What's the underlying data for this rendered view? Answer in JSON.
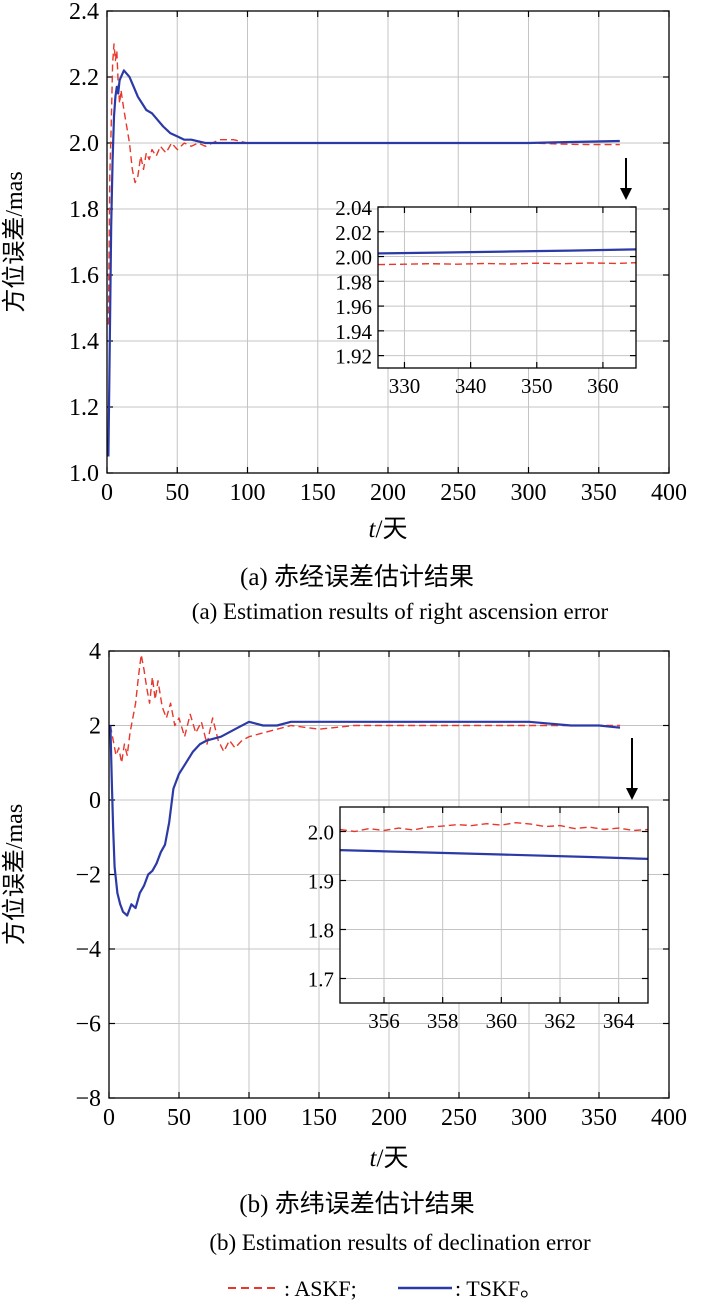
{
  "colors": {
    "askf": "#e8372b",
    "tskf": "#2b3aa6",
    "grid": "#c4c4c4",
    "axis": "#000000"
  },
  "legend": {
    "askf_label": ": ASKF;",
    "tskf_label": ": TSKF。"
  },
  "chart_data": [
    {
      "type": "line",
      "title": "",
      "caption_cn": "(a) 赤经误差估计结果",
      "caption_en": "(a) Estimation results of right ascension error",
      "xlabel_italic": "t",
      "xlabel_rest": "/天",
      "ylabel": "方位误差/mas",
      "xlim": [
        0,
        400
      ],
      "ylim": [
        1.0,
        2.4
      ],
      "xticks": [
        0,
        50,
        100,
        150,
        200,
        250,
        300,
        350,
        400
      ],
      "yticks": [
        1.0,
        1.2,
        1.4,
        1.6,
        1.8,
        2.0,
        2.2,
        2.4
      ],
      "ytick_labels": [
        "1.0",
        "1.2",
        "1.4",
        "1.6",
        "1.8",
        "2.0",
        "2.2",
        "2.4"
      ],
      "grid": true,
      "series": [
        {
          "name": "ASKF",
          "style": "dashed",
          "x": [
            1,
            2,
            3,
            4,
            5,
            6,
            7,
            8,
            9,
            10,
            12,
            14,
            16,
            18,
            20,
            22,
            24,
            26,
            28,
            30,
            32,
            35,
            38,
            42,
            46,
            50,
            55,
            60,
            65,
            70,
            75,
            80,
            90,
            100,
            120,
            150,
            200,
            250,
            300,
            330,
            345,
            365
          ],
          "y": [
            1.45,
            1.9,
            2.05,
            2.24,
            2.3,
            2.25,
            2.28,
            2.18,
            2.12,
            2.16,
            2.1,
            2.05,
            2.0,
            1.92,
            1.88,
            1.9,
            1.96,
            1.92,
            1.97,
            1.95,
            1.98,
            1.96,
            1.99,
            1.97,
            2.0,
            1.98,
            2.0,
            1.99,
            2.0,
            1.99,
            2.0,
            2.01,
            2.01,
            2.0,
            2.0,
            2.0,
            2.0,
            2.0,
            2.0,
            1.996,
            1.995,
            1.995
          ]
        },
        {
          "name": "TSKF",
          "style": "solid",
          "x": [
            1,
            2,
            3,
            4,
            5,
            6,
            7,
            8,
            9,
            10,
            12,
            14,
            16,
            18,
            20,
            22,
            25,
            28,
            32,
            36,
            40,
            45,
            50,
            55,
            60,
            70,
            80,
            90,
            100,
            120,
            150,
            200,
            250,
            300,
            330,
            365
          ],
          "y": [
            1.05,
            1.4,
            1.75,
            1.95,
            2.08,
            2.14,
            2.17,
            2.15,
            2.19,
            2.2,
            2.22,
            2.21,
            2.2,
            2.18,
            2.16,
            2.14,
            2.12,
            2.1,
            2.09,
            2.07,
            2.05,
            2.03,
            2.02,
            2.01,
            2.01,
            2.0,
            2.0,
            2.0,
            2.0,
            2.0,
            2.0,
            2.0,
            2.0,
            2.0,
            2.003,
            2.006
          ]
        }
      ],
      "inset": {
        "xlim": [
          326,
          365
        ],
        "ylim": [
          1.91,
          2.04
        ],
        "xticks": [
          330,
          340,
          350,
          360
        ],
        "yticks": [
          1.92,
          1.94,
          1.96,
          1.98,
          2.0,
          2.02,
          2.04
        ],
        "ytick_labels": [
          "1.92",
          "1.94",
          "1.96",
          "1.98",
          "2.00",
          "2.02",
          "2.04"
        ],
        "series": [
          {
            "name": "ASKF",
            "style": "dashed",
            "x": [
              326,
              330,
              334,
              338,
              342,
              346,
              350,
              354,
              358,
              362,
              365
            ],
            "y": [
              1.9935,
              1.9938,
              1.9942,
              1.9938,
              1.9944,
              1.994,
              1.9946,
              1.9942,
              1.9948,
              1.9945,
              1.995
            ]
          },
          {
            "name": "TSKF",
            "style": "solid",
            "x": [
              326,
              335,
              345,
              355,
              365
            ],
            "y": [
              2.0025,
              2.0032,
              2.004,
              2.0048,
              2.0058
            ]
          }
        ]
      }
    },
    {
      "type": "line",
      "title": "",
      "caption_cn": "(b) 赤纬误差估计结果",
      "caption_en": "(b) Estimation results of declination error",
      "xlabel_italic": "t",
      "xlabel_rest": "/天",
      "ylabel": "方位误差/mas",
      "xlim": [
        0,
        400
      ],
      "ylim": [
        -8,
        4
      ],
      "xticks": [
        0,
        50,
        100,
        150,
        200,
        250,
        300,
        350,
        400
      ],
      "yticks": [
        -8,
        -6,
        -4,
        -2,
        0,
        2,
        4
      ],
      "ytick_labels": [
        "−8",
        "−6",
        "−4",
        "−2",
        "0",
        "2",
        "4"
      ],
      "grid": true,
      "series": [
        {
          "name": "ASKF",
          "style": "dashed",
          "x": [
            1,
            3,
            5,
            7,
            9,
            11,
            13,
            15,
            17,
            19,
            21,
            23,
            25,
            27,
            29,
            31,
            33,
            35,
            38,
            41,
            44,
            47,
            50,
            54,
            58,
            62,
            66,
            70,
            74,
            78,
            82,
            86,
            90,
            95,
            100,
            110,
            120,
            130,
            150,
            175,
            200,
            250,
            300,
            330,
            350,
            365
          ],
          "y": [
            2.0,
            1.6,
            1.2,
            1.4,
            1.0,
            1.5,
            1.2,
            1.8,
            2.2,
            2.6,
            3.3,
            3.9,
            3.5,
            3.0,
            2.6,
            3.3,
            2.7,
            3.2,
            2.5,
            2.2,
            2.6,
            2.0,
            2.2,
            1.7,
            2.3,
            1.8,
            2.1,
            1.5,
            2.2,
            1.6,
            1.3,
            1.6,
            1.4,
            1.6,
            1.7,
            1.8,
            1.9,
            2.0,
            1.9,
            2.0,
            2.0,
            2.0,
            2.0,
            2.0,
            2.0,
            2.0
          ]
        },
        {
          "name": "TSKF",
          "style": "solid",
          "x": [
            1,
            2,
            3,
            4,
            6,
            8,
            10,
            13,
            16,
            19,
            22,
            25,
            28,
            31,
            34,
            37,
            40,
            43,
            46,
            50,
            55,
            60,
            65,
            70,
            80,
            90,
            100,
            110,
            120,
            130,
            150,
            200,
            250,
            300,
            330,
            350,
            365
          ],
          "y": [
            2.0,
            0.5,
            -0.8,
            -1.8,
            -2.5,
            -2.8,
            -3.0,
            -3.1,
            -2.8,
            -2.9,
            -2.5,
            -2.3,
            -2.0,
            -1.9,
            -1.7,
            -1.4,
            -1.2,
            -0.6,
            0.3,
            0.7,
            1.0,
            1.3,
            1.5,
            1.6,
            1.7,
            1.9,
            2.1,
            2.0,
            2.0,
            2.1,
            2.1,
            2.1,
            2.1,
            2.1,
            2.0,
            2.0,
            1.94
          ]
        }
      ],
      "inset": {
        "xlim": [
          354.5,
          365
        ],
        "ylim": [
          1.65,
          2.05
        ],
        "xticks": [
          356,
          358,
          360,
          362,
          364
        ],
        "yticks": [
          1.7,
          1.8,
          1.9,
          2.0
        ],
        "ytick_labels": [
          "1.7",
          "1.8",
          "1.9",
          "2.0"
        ],
        "series": [
          {
            "name": "ASKF",
            "style": "dashed",
            "x": [
              354.5,
              355,
              355.5,
              356,
              356.5,
              357,
              357.5,
              358,
              358.5,
              359,
              359.5,
              360,
              360.5,
              361,
              361.5,
              362,
              362.5,
              363,
              363.5,
              364,
              364.5,
              365
            ],
            "y": [
              2.004,
              2.0,
              2.006,
              2.002,
              2.007,
              2.003,
              2.009,
              2.011,
              2.014,
              2.012,
              2.016,
              2.013,
              2.018,
              2.015,
              2.01,
              2.012,
              2.006,
              2.009,
              2.004,
              2.007,
              2.002,
              2.004
            ]
          },
          {
            "name": "TSKF",
            "style": "solid",
            "x": [
              354.5,
              357,
              360,
              363,
              365
            ],
            "y": [
              1.962,
              1.958,
              1.953,
              1.948,
              1.944
            ]
          }
        ]
      }
    }
  ]
}
